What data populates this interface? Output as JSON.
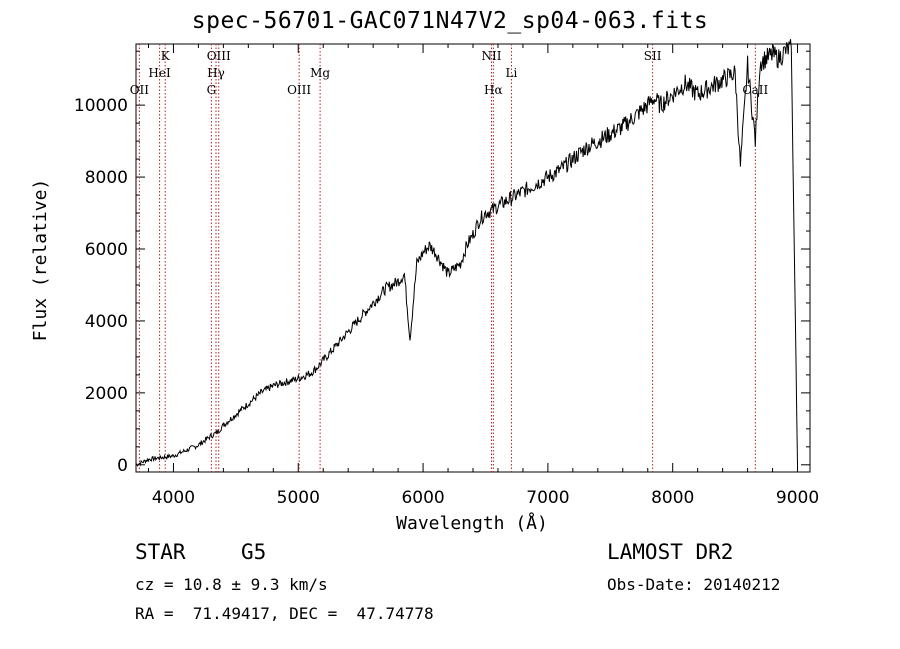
{
  "chart_data": {
    "type": "line",
    "title": "spec-56701-GAC071N47V2_sp04-063.fits",
    "xlabel": "Wavelength (Å)",
    "ylabel": "Flux (relative)",
    "xlim": [
      3700,
      9100
    ],
    "ylim": [
      -200,
      11700
    ],
    "xticks": [
      4000,
      5000,
      6000,
      7000,
      8000,
      9000
    ],
    "xtick_labels": [
      "4000",
      "5000",
      "6000",
      "7000",
      "8000",
      "9000"
    ],
    "yticks": [
      0,
      2000,
      4000,
      6000,
      8000,
      10000
    ],
    "ytick_labels": [
      "0",
      "2000",
      "4000",
      "6000",
      "8000",
      "10000"
    ],
    "series": [
      {
        "name": "spectrum",
        "x": [
          3700,
          3800,
          3900,
          4000,
          4100,
          4200,
          4300,
          4350,
          4400,
          4500,
          4600,
          4700,
          4800,
          4900,
          5000,
          5100,
          5150,
          5200,
          5300,
          5400,
          5500,
          5600,
          5700,
          5800,
          5850,
          5895,
          5950,
          6000,
          6050,
          6100,
          6200,
          6300,
          6350,
          6400,
          6450,
          6500,
          6563,
          6600,
          6700,
          6800,
          6900,
          7000,
          7100,
          7200,
          7300,
          7400,
          7500,
          7600,
          7700,
          7800,
          7850,
          7900,
          8000,
          8100,
          8200,
          8300,
          8400,
          8500,
          8542,
          8600,
          8662,
          8700,
          8800,
          8850,
          8900,
          8950,
          9000
        ],
        "y": [
          0,
          150,
          200,
          250,
          400,
          550,
          800,
          900,
          1100,
          1400,
          1700,
          2000,
          2200,
          2300,
          2400,
          2550,
          2700,
          2900,
          3300,
          3700,
          4100,
          4500,
          4900,
          5100,
          5300,
          3500,
          5600,
          5900,
          6100,
          5900,
          5300,
          5600,
          6100,
          6400,
          6800,
          7000,
          7100,
          7200,
          7400,
          7600,
          7800,
          8000,
          8200,
          8500,
          8800,
          9000,
          9200,
          9400,
          9700,
          10000,
          10200,
          10000,
          10300,
          10600,
          10300,
          10500,
          10700,
          10900,
          8300,
          11100,
          9000,
          11200,
          11400,
          11300,
          11500,
          11600,
          0
        ]
      }
    ],
    "lines": [
      {
        "label": "OII",
        "x": 3727,
        "row": 3
      },
      {
        "label": "HeI",
        "x": 3889,
        "row": 2
      },
      {
        "label": "K",
        "x": 3934,
        "row": 1
      },
      {
        "label": "G",
        "x": 4304,
        "row": 3
      },
      {
        "label": "Hγ",
        "x": 4341,
        "row": 2
      },
      {
        "label": "OIII",
        "x": 4363,
        "row": 1
      },
      {
        "label": "OIII",
        "x": 5007,
        "row": 3
      },
      {
        "label": "Mg",
        "x": 5175,
        "row": 2
      },
      {
        "label": "NII",
        "x": 6548,
        "row": 1
      },
      {
        "label": "Hα",
        "x": 6563,
        "row": 3
      },
      {
        "label": "Li",
        "x": 6708,
        "row": 2
      },
      {
        "label": "SII",
        "x": 7839,
        "row": 1
      },
      {
        "label": "CaII",
        "x": 8662,
        "row": 3
      }
    ],
    "line_color": "#b22222"
  },
  "info": {
    "class": "STAR",
    "subclass": "G5",
    "survey": "LAMOST DR2",
    "cz": "cz = 10.8 ± 9.3 km/s",
    "obs_date": "Obs-Date: 20140212",
    "coords": "RA =  71.49417, DEC =  47.74778"
  }
}
